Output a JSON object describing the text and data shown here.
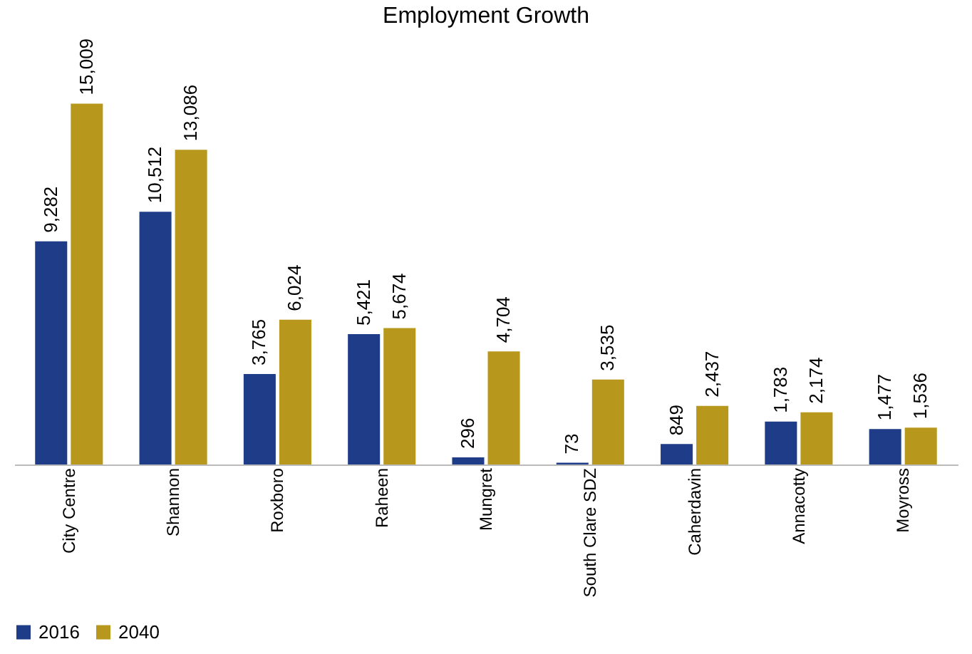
{
  "chart_data": {
    "type": "bar",
    "title": "Employment Growth",
    "categories": [
      "City Centre",
      "Shannon",
      "Roxboro",
      "Raheen",
      "Mungret",
      "South Clare SDZ",
      "Caherdavin",
      "Annacotty",
      "Moyross"
    ],
    "series": [
      {
        "name": "2016",
        "color": "#1f3c88",
        "values": [
          9282,
          10512,
          3765,
          5421,
          296,
          73,
          849,
          1783,
          1477
        ],
        "value_labels": [
          "9,282",
          "10,512",
          "3,765",
          "5,421",
          "296",
          "73",
          "849",
          "1,783",
          "1,477"
        ]
      },
      {
        "name": "2040",
        "color": "#b8981c",
        "values": [
          15009,
          13086,
          6024,
          5674,
          4704,
          3535,
          2437,
          2174,
          1536
        ],
        "value_labels": [
          "15,009",
          "13,086",
          "6,024",
          "5,674",
          "4,704",
          "3,535",
          "2,437",
          "2,174",
          "1,536"
        ]
      }
    ],
    "legend": "bottom",
    "grid": false
  }
}
